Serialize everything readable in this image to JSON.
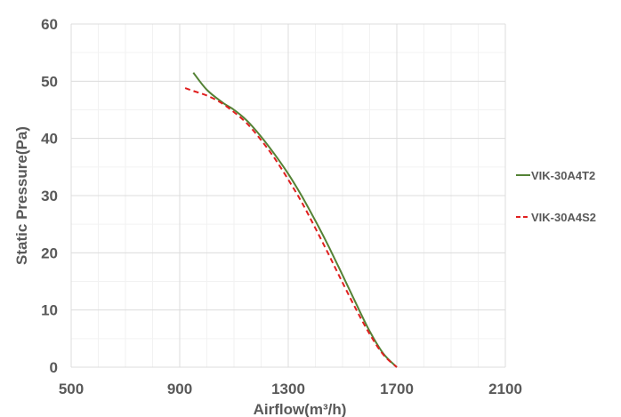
{
  "chart_data": {
    "type": "line",
    "title": "",
    "xlabel": "Airflow(m³/h)",
    "ylabel": "Static Pressure(Pa)",
    "xlim": [
      500,
      2100
    ],
    "ylim": [
      0,
      60
    ],
    "x_ticks": [
      "500",
      "900",
      "1300",
      "1700",
      "2100"
    ],
    "y_ticks": [
      "0",
      "10",
      "20",
      "30",
      "40",
      "50",
      "60"
    ],
    "grid": true,
    "legend_position": "right",
    "series": [
      {
        "name": "VIK-30A4T2",
        "color": "#548235",
        "line_style": "solid",
        "x": [
          950,
          1000,
          1060,
          1100,
          1150,
          1200,
          1250,
          1300,
          1350,
          1400,
          1450,
          1500,
          1550,
          1600,
          1650,
          1700
        ],
        "y": [
          51.5,
          48.5,
          46.2,
          45.0,
          43.0,
          40.3,
          37.2,
          33.8,
          29.9,
          25.6,
          21.0,
          16.1,
          11.1,
          6.3,
          2.4,
          0
        ]
      },
      {
        "name": "VIK-30A4S2",
        "color": "#e02020",
        "line_style": "dashed",
        "x": [
          920,
          950,
          1000,
          1050,
          1100,
          1150,
          1200,
          1250,
          1300,
          1350,
          1400,
          1450,
          1500,
          1550,
          1600,
          1650,
          1700
        ],
        "y": [
          48.8,
          48.3,
          47.5,
          46.3,
          44.6,
          42.5,
          39.7,
          36.5,
          32.8,
          28.8,
          24.3,
          19.6,
          14.8,
          10.1,
          5.8,
          2.2,
          0
        ]
      }
    ]
  }
}
